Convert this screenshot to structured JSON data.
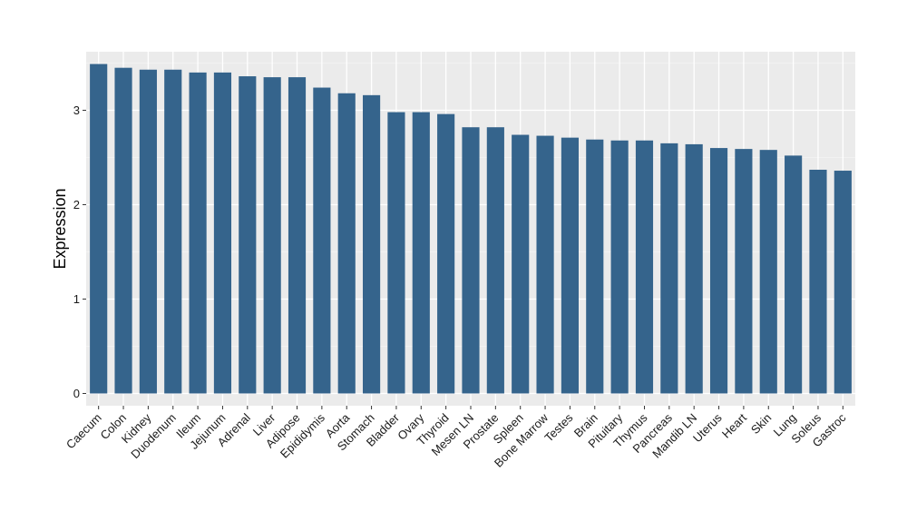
{
  "chart_data": {
    "type": "bar",
    "title": "",
    "xlabel": "",
    "ylabel": "Expression",
    "ylim": [
      -0.13,
      3.62
    ],
    "yticks": [
      0,
      1,
      2,
      3
    ],
    "grid": true,
    "bar_color": "#35648c",
    "panel_color": "#ebebeb",
    "categories": [
      "Caecum",
      "Colon",
      "Kidney",
      "Duodenum",
      "Ileum",
      "Jejunum",
      "Adrenal",
      "Liver",
      "Adipose",
      "Epididymis",
      "Aorta",
      "Stomach",
      "Bladder",
      "Ovary",
      "Thyroid",
      "Mesen LN",
      "Prostate",
      "Spleen",
      "Bone Marrow",
      "Testes",
      "Brain",
      "Pituitary",
      "Thymus",
      "Pancreas",
      "Mandib LN",
      "Uterus",
      "Heart",
      "Skin",
      "Lung",
      "Soleus",
      "Gastroc"
    ],
    "values": [
      3.49,
      3.45,
      3.43,
      3.43,
      3.4,
      3.4,
      3.36,
      3.35,
      3.35,
      3.24,
      3.18,
      3.16,
      2.98,
      2.98,
      2.96,
      2.82,
      2.82,
      2.74,
      2.73,
      2.71,
      2.69,
      2.68,
      2.68,
      2.65,
      2.64,
      2.6,
      2.59,
      2.58,
      2.52,
      2.37,
      2.36
    ]
  }
}
